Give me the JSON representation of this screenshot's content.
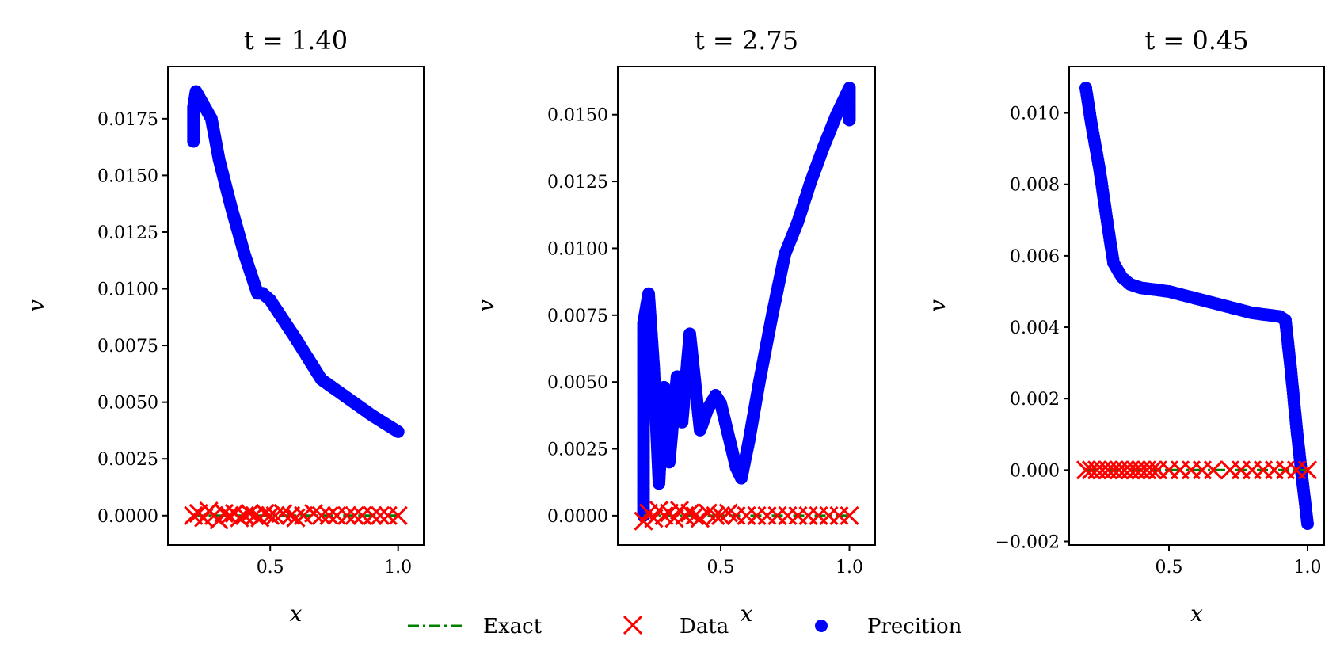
{
  "chart_data": [
    {
      "type": "scatter",
      "title": "t = 1.40",
      "xlabel": "x",
      "ylabel": "v",
      "xlim": [
        0.1,
        1.1
      ],
      "ylim": [
        -0.0013,
        0.0198
      ],
      "xticks": [
        0.5,
        1.0
      ],
      "xtick_labels": [
        "0.5",
        "1.0"
      ],
      "yticks": [
        0.0,
        0.0025,
        0.005,
        0.0075,
        0.01,
        0.0125,
        0.015,
        0.0175
      ],
      "ytick_labels": [
        "0.0000",
        "0.0025",
        "0.0050",
        "0.0075",
        "0.0100",
        "0.0125",
        "0.0150",
        "0.0175"
      ],
      "grid": false,
      "series": [
        {
          "name": "Exact",
          "style": "dash-dot line",
          "color": "#008000",
          "x": [
            0.2,
            0.3,
            0.4,
            0.5,
            0.6,
            0.7,
            0.8,
            0.9,
            1.0
          ],
          "y": [
            0,
            0,
            0,
            0,
            0,
            0,
            0,
            0,
            0
          ]
        },
        {
          "name": "Data",
          "style": "x markers",
          "color": "#ff0000",
          "x": [
            0.2,
            0.22,
            0.24,
            0.26,
            0.28,
            0.3,
            0.32,
            0.34,
            0.36,
            0.38,
            0.4,
            0.42,
            0.44,
            0.46,
            0.48,
            0.5,
            0.52,
            0.55,
            0.58,
            0.6,
            0.63,
            0.67,
            0.7,
            0.73,
            0.76,
            0.8,
            0.83,
            0.86,
            0.9,
            0.93,
            0.96,
            1.0
          ],
          "y": [
            0,
            0.0001,
            -0.0001,
            0.0002,
            0,
            -0.0002,
            0.0001,
            0,
            0.0001,
            -0.0001,
            0,
            0.0001,
            0,
            -0.0001,
            0.0001,
            0,
            0,
            0.0001,
            0,
            -0.0001,
            0,
            0.0001,
            0,
            0,
            0,
            0,
            0,
            0,
            0,
            0,
            0,
            0
          ]
        },
        {
          "name": "Precition",
          "style": "filled circle markers",
          "color": "#0000ff",
          "x": [
            0.2,
            0.2,
            0.21,
            0.22,
            0.27,
            0.3,
            0.35,
            0.4,
            0.45,
            0.47,
            0.5,
            0.6,
            0.7,
            0.8,
            0.9,
            1.0
          ],
          "y": [
            0.0165,
            0.018,
            0.0187,
            0.0185,
            0.0175,
            0.0157,
            0.0135,
            0.0115,
            0.0098,
            0.0098,
            0.0095,
            0.0078,
            0.006,
            0.0052,
            0.0044,
            0.0037
          ]
        }
      ]
    },
    {
      "type": "scatter",
      "title": "t = 2.75",
      "xlabel": "x",
      "ylabel": "v",
      "xlim": [
        0.1,
        1.1
      ],
      "ylim": [
        -0.0011,
        0.0168
      ],
      "xticks": [
        0.5,
        1.0
      ],
      "xtick_labels": [
        "0.5",
        "1.0"
      ],
      "yticks": [
        0.0,
        0.0025,
        0.005,
        0.0075,
        0.01,
        0.0125,
        0.015
      ],
      "ytick_labels": [
        "0.0000",
        "0.0025",
        "0.0050",
        "0.0075",
        "0.0100",
        "0.0125",
        "0.0150"
      ],
      "grid": false,
      "series": [
        {
          "name": "Exact",
          "style": "dash-dot line",
          "color": "#008000",
          "x": [
            0.2,
            0.3,
            0.4,
            0.5,
            0.6,
            0.7,
            0.8,
            0.9,
            1.0
          ],
          "y": [
            0,
            0,
            0,
            0,
            0,
            0,
            0,
            0,
            0
          ]
        },
        {
          "name": "Data",
          "style": "x markers",
          "color": "#ff0000",
          "x": [
            0.2,
            0.22,
            0.24,
            0.26,
            0.28,
            0.3,
            0.32,
            0.34,
            0.36,
            0.38,
            0.4,
            0.42,
            0.45,
            0.48,
            0.5,
            0.53,
            0.56,
            0.6,
            0.64,
            0.68,
            0.72,
            0.76,
            0.8,
            0.84,
            0.88,
            0.92,
            0.96,
            1.0
          ],
          "y": [
            -0.0002,
            0.0001,
            -0.0001,
            0.0002,
            0,
            0.0001,
            -0.0001,
            0.0002,
            0,
            0.0001,
            0,
            -0.0001,
            0.0001,
            0,
            0,
            0.0001,
            0,
            0,
            0,
            0,
            0,
            0,
            0,
            0,
            0,
            0,
            0,
            0
          ]
        },
        {
          "name": "Precition",
          "style": "filled circle markers",
          "color": "#0000ff",
          "x": [
            0.2,
            0.2,
            0.22,
            0.24,
            0.26,
            0.28,
            0.3,
            0.33,
            0.35,
            0.38,
            0.4,
            0.42,
            0.45,
            0.48,
            0.5,
            0.53,
            0.56,
            0.58,
            0.61,
            0.65,
            0.7,
            0.75,
            0.8,
            0.85,
            0.9,
            0.95,
            1.0,
            1.0
          ],
          "y": [
            0,
            0.0072,
            0.0083,
            0.0055,
            0.0012,
            0.0048,
            0.002,
            0.0052,
            0.0035,
            0.0068,
            0.005,
            0.0032,
            0.004,
            0.0045,
            0.0042,
            0.003,
            0.0018,
            0.0014,
            0.0028,
            0.005,
            0.0075,
            0.0098,
            0.011,
            0.0125,
            0.0138,
            0.015,
            0.016,
            0.0148
          ]
        }
      ]
    },
    {
      "type": "scatter",
      "title": "t = 0.45",
      "xlabel": "x",
      "ylabel": "v",
      "xlim": [
        0.14,
        1.06
      ],
      "ylim": [
        -0.0021,
        0.0113
      ],
      "xticks": [
        0.5,
        1.0
      ],
      "xtick_labels": [
        "0.5",
        "1.0"
      ],
      "yticks": [
        -0.002,
        0.0,
        0.002,
        0.004,
        0.006,
        0.008,
        0.01
      ],
      "ytick_labels": [
        "−0.002",
        "0.000",
        "0.002",
        "0.004",
        "0.006",
        "0.008",
        "0.010"
      ],
      "grid": false,
      "series": [
        {
          "name": "Exact",
          "style": "dash-dot line",
          "color": "#008000",
          "x": [
            0.2,
            0.3,
            0.4,
            0.5,
            0.6,
            0.7,
            0.8,
            0.9,
            1.0
          ],
          "y": [
            0,
            0,
            0,
            0,
            0,
            0,
            0,
            0,
            0
          ]
        },
        {
          "name": "Data",
          "style": "x markers",
          "color": "#ff0000",
          "x": [
            0.2,
            0.22,
            0.24,
            0.26,
            0.28,
            0.3,
            0.32,
            0.34,
            0.36,
            0.38,
            0.4,
            0.42,
            0.44,
            0.46,
            0.5,
            0.54,
            0.58,
            0.62,
            0.66,
            0.72,
            0.76,
            0.8,
            0.84,
            0.88,
            0.92,
            0.96,
            1.0
          ],
          "y": [
            0,
            0,
            0,
            0,
            0,
            0,
            0,
            0,
            0,
            0,
            0,
            0,
            0,
            0,
            0,
            0,
            0,
            0,
            0,
            0,
            0,
            0,
            0,
            0,
            0,
            0,
            0
          ]
        },
        {
          "name": "Precition",
          "style": "filled circle markers",
          "color": "#0000ff",
          "x": [
            0.2,
            0.22,
            0.25,
            0.28,
            0.3,
            0.33,
            0.36,
            0.4,
            0.5,
            0.6,
            0.7,
            0.8,
            0.9,
            0.92,
            0.94,
            0.96,
            0.98,
            1.0
          ],
          "y": [
            0.0107,
            0.0097,
            0.0084,
            0.0068,
            0.0058,
            0.0054,
            0.0052,
            0.0051,
            0.005,
            0.0048,
            0.0046,
            0.0044,
            0.0043,
            0.0042,
            0.0028,
            0.0012,
            -0.0002,
            -0.0015
          ]
        }
      ]
    }
  ],
  "legend": {
    "placement": "bottom-center",
    "items": [
      {
        "label": "Exact",
        "color": "#008000"
      },
      {
        "label": "Data",
        "color": "#ff0000"
      },
      {
        "label": "Precition",
        "color": "#0000ff"
      }
    ]
  }
}
